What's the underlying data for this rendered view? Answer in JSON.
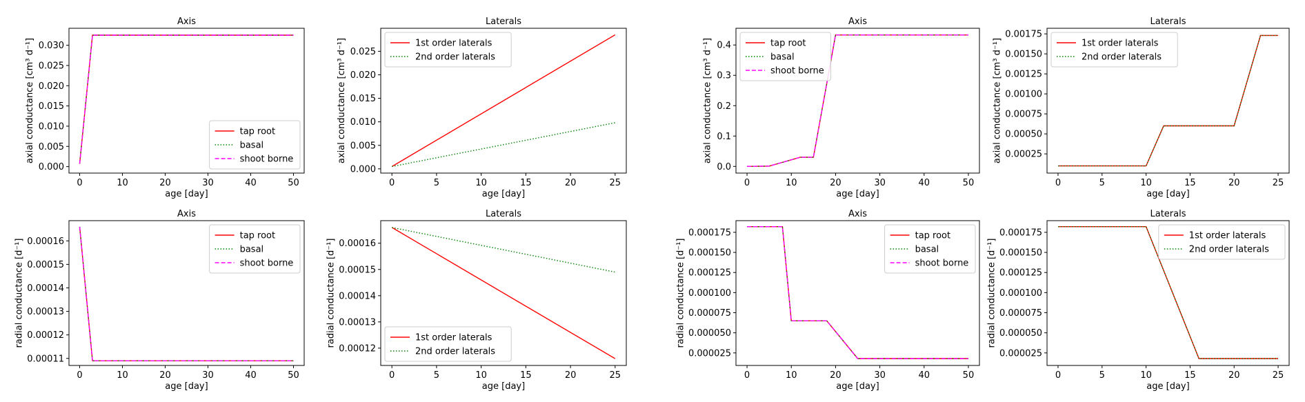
{
  "chart_data": [
    {
      "type": "line",
      "title": "Axis",
      "xlabel": "age [day]",
      "ylabel": "axial conductance [cm³ d⁻¹]",
      "xlim": [
        -2.5,
        52.5
      ],
      "ylim": [
        -0.0016,
        0.0342
      ],
      "xticks": [
        0,
        10,
        20,
        30,
        40,
        50
      ],
      "yticks": [
        0.0,
        0.005,
        0.01,
        0.015,
        0.02,
        0.025,
        0.03
      ],
      "ytick_labels": [
        "0.000",
        "0.005",
        "0.010",
        "0.015",
        "0.020",
        "0.025",
        "0.030"
      ],
      "legend_position": "lower-right",
      "series": [
        {
          "name": "tap root",
          "color": "#ff0000",
          "dash": "solid",
          "x": [
            0,
            3,
            50
          ],
          "y": [
            0.0007,
            0.0325,
            0.0325
          ]
        },
        {
          "name": "basal",
          "color": "#008000",
          "dash": "dotted",
          "x": [
            0,
            3,
            50
          ],
          "y": [
            0.0007,
            0.0325,
            0.0325
          ]
        },
        {
          "name": "shoot borne",
          "color": "#ff00ff",
          "dash": "dashed",
          "x": [
            0,
            3,
            50
          ],
          "y": [
            0.0007,
            0.0325,
            0.0325
          ]
        }
      ]
    },
    {
      "type": "line",
      "title": "Laterals",
      "xlabel": "age [day]",
      "ylabel": "axial conductance [cm³ d⁻¹]",
      "xlim": [
        -1.25,
        26.25
      ],
      "ylim": [
        -0.0009,
        0.0299
      ],
      "xticks": [
        0,
        5,
        10,
        15,
        20,
        25
      ],
      "yticks": [
        0.0,
        0.005,
        0.01,
        0.015,
        0.02,
        0.025
      ],
      "ytick_labels": [
        "0.000",
        "0.005",
        "0.010",
        "0.015",
        "0.020",
        "0.025"
      ],
      "legend_position": "upper-left",
      "series": [
        {
          "name": "1st order laterals",
          "color": "#ff0000",
          "dash": "solid",
          "x": [
            0,
            25
          ],
          "y": [
            0.0005,
            0.0285
          ]
        },
        {
          "name": "2nd order laterals",
          "color": "#008000",
          "dash": "dotted",
          "x": [
            0,
            25
          ],
          "y": [
            0.0005,
            0.0098
          ]
        }
      ]
    },
    {
      "type": "line",
      "title": "Axis",
      "xlabel": "age [day]",
      "ylabel": "axial conductance [cm³ d⁻¹]",
      "xlim": [
        -2.5,
        52.5
      ],
      "ylim": [
        -0.022,
        0.455
      ],
      "xticks": [
        0,
        10,
        20,
        30,
        40,
        50
      ],
      "yticks": [
        0.0,
        0.1,
        0.2,
        0.3,
        0.4
      ],
      "ytick_labels": [
        "0.0",
        "0.1",
        "0.2",
        "0.3",
        "0.4"
      ],
      "legend_position": "upper-left",
      "series": [
        {
          "name": "tap root",
          "color": "#ff0000",
          "dash": "solid",
          "x": [
            0,
            5,
            12,
            15,
            20,
            50
          ],
          "y": [
            0.0,
            0.001,
            0.03,
            0.03,
            0.433,
            0.433
          ]
        },
        {
          "name": "basal",
          "color": "#008000",
          "dash": "dotted",
          "x": [
            0,
            5,
            12,
            15,
            20,
            50
          ],
          "y": [
            0.0,
            0.001,
            0.03,
            0.03,
            0.433,
            0.433
          ]
        },
        {
          "name": "shoot borne",
          "color": "#ff00ff",
          "dash": "dashed",
          "x": [
            0,
            5,
            12,
            15,
            20,
            50
          ],
          "y": [
            0.0,
            0.001,
            0.03,
            0.03,
            0.433,
            0.433
          ]
        }
      ]
    },
    {
      "type": "line",
      "title": "Laterals",
      "xlabel": "age [day]",
      "ylabel": "axial conductance [cm³ d⁻¹]",
      "xlim": [
        -1.25,
        26.25
      ],
      "ylim": [
        1e-05,
        0.00182
      ],
      "xticks": [
        0,
        5,
        10,
        15,
        20,
        25
      ],
      "yticks": [
        0.00025,
        0.0005,
        0.00075,
        0.001,
        0.00125,
        0.0015,
        0.00175
      ],
      "ytick_labels": [
        "0.00025",
        "0.00050",
        "0.00075",
        "0.00100",
        "0.00125",
        "0.00150",
        "0.00175"
      ],
      "legend_position": "upper-left",
      "series": [
        {
          "name": "1st order laterals",
          "color": "#ff0000",
          "dash": "solid",
          "x": [
            0,
            10,
            12,
            20,
            23,
            25
          ],
          "y": [
            0.0001,
            0.0001,
            0.0006,
            0.0006,
            0.00173,
            0.00173
          ]
        },
        {
          "name": "2nd order laterals",
          "color": "#008000",
          "dash": "dotted",
          "x": [
            0,
            10,
            12,
            20,
            23,
            25
          ],
          "y": [
            0.0001,
            0.0001,
            0.0006,
            0.0006,
            0.00173,
            0.00173
          ]
        }
      ]
    },
    {
      "type": "line",
      "title": "Axis",
      "xlabel": "age [day]",
      "ylabel": "radial conductance [d⁻¹]",
      "xlim": [
        -2.5,
        52.5
      ],
      "ylim": [
        0.000107,
        0.0001686
      ],
      "xticks": [
        0,
        10,
        20,
        30,
        40,
        50
      ],
      "yticks": [
        0.00011,
        0.00012,
        0.00013,
        0.00014,
        0.00015,
        0.00016
      ],
      "ytick_labels": [
        "0.00011",
        "0.00012",
        "0.00013",
        "0.00014",
        "0.00015",
        "0.00016"
      ],
      "legend_position": "upper-right",
      "series": [
        {
          "name": "tap root",
          "color": "#ff0000",
          "dash": "solid",
          "x": [
            0,
            3,
            50
          ],
          "y": [
            0.000166,
            0.000109,
            0.000109
          ]
        },
        {
          "name": "basal",
          "color": "#008000",
          "dash": "dotted",
          "x": [
            0,
            3,
            50
          ],
          "y": [
            0.000166,
            0.000109,
            0.000109
          ]
        },
        {
          "name": "shoot borne",
          "color": "#ff00ff",
          "dash": "dashed",
          "x": [
            0,
            3,
            50
          ],
          "y": [
            0.000166,
            0.000109,
            0.000109
          ]
        }
      ]
    },
    {
      "type": "line",
      "title": "Laterals",
      "xlabel": "age [day]",
      "ylabel": "radial conductance [d⁻¹]",
      "xlim": [
        -1.25,
        26.25
      ],
      "ylim": [
        0.0001134,
        0.0001686
      ],
      "xticks": [
        0,
        5,
        10,
        15,
        20,
        25
      ],
      "yticks": [
        0.00012,
        0.00013,
        0.00014,
        0.00015,
        0.00016
      ],
      "ytick_labels": [
        "0.00012",
        "0.00013",
        "0.00014",
        "0.00015",
        "0.00016"
      ],
      "legend_position": "lower-left",
      "series": [
        {
          "name": "1st order laterals",
          "color": "#ff0000",
          "dash": "solid",
          "x": [
            0,
            25
          ],
          "y": [
            0.000166,
            0.000116
          ]
        },
        {
          "name": "2nd order laterals",
          "color": "#008000",
          "dash": "dotted",
          "x": [
            0,
            25
          ],
          "y": [
            0.000166,
            0.000149
          ]
        }
      ]
    },
    {
      "type": "line",
      "title": "Axis",
      "xlabel": "age [day]",
      "ylabel": "radial conductance [d⁻¹]",
      "xlim": [
        -2.5,
        52.5
      ],
      "ylim": [
        9.4e-06,
        0.0001895
      ],
      "xticks": [
        0,
        10,
        20,
        30,
        40,
        50
      ],
      "yticks": [
        2.5e-05,
        5e-05,
        7.5e-05,
        0.0001,
        0.000125,
        0.00015,
        0.000175
      ],
      "ytick_labels": [
        "0.000025",
        "0.000050",
        "0.000075",
        "0.000100",
        "0.000125",
        "0.000150",
        "0.000175"
      ],
      "legend_position": "upper-right",
      "series": [
        {
          "name": "tap root",
          "color": "#ff0000",
          "dash": "solid",
          "x": [
            0,
            8,
            10,
            18,
            25,
            50
          ],
          "y": [
            0.000182,
            0.000182,
            6.5e-05,
            6.5e-05,
            1.8e-05,
            1.8e-05
          ]
        },
        {
          "name": "basal",
          "color": "#008000",
          "dash": "dotted",
          "x": [
            0,
            8,
            10,
            18,
            25,
            50
          ],
          "y": [
            0.000182,
            0.000182,
            6.5e-05,
            6.5e-05,
            1.8e-05,
            1.8e-05
          ]
        },
        {
          "name": "shoot borne",
          "color": "#ff00ff",
          "dash": "dashed",
          "x": [
            0,
            8,
            10,
            18,
            25,
            50
          ],
          "y": [
            0.000182,
            0.000182,
            6.5e-05,
            6.5e-05,
            1.8e-05,
            1.8e-05
          ]
        }
      ]
    },
    {
      "type": "line",
      "title": "Laterals",
      "xlabel": "age [day]",
      "ylabel": "radial conductance [d⁻¹]",
      "xlim": [
        -1.25,
        26.25
      ],
      "ylim": [
        9.4e-06,
        0.0001895
      ],
      "xticks": [
        0,
        5,
        10,
        15,
        20,
        25
      ],
      "yticks": [
        2.5e-05,
        5e-05,
        7.5e-05,
        0.0001,
        0.000125,
        0.00015,
        0.000175
      ],
      "ytick_labels": [
        "0.000025",
        "0.000050",
        "0.000075",
        "0.000100",
        "0.000125",
        "0.000150",
        "0.000175"
      ],
      "legend_position": "upper-right",
      "series": [
        {
          "name": "1st order laterals",
          "color": "#ff0000",
          "dash": "solid",
          "x": [
            0,
            10,
            16,
            25
          ],
          "y": [
            0.000182,
            0.000182,
            1.8e-05,
            1.8e-05
          ]
        },
        {
          "name": "2nd order laterals",
          "color": "#008000",
          "dash": "dotted",
          "x": [
            0,
            10,
            16,
            25
          ],
          "y": [
            0.000182,
            0.000182,
            1.8e-05,
            1.8e-05
          ]
        }
      ]
    }
  ]
}
